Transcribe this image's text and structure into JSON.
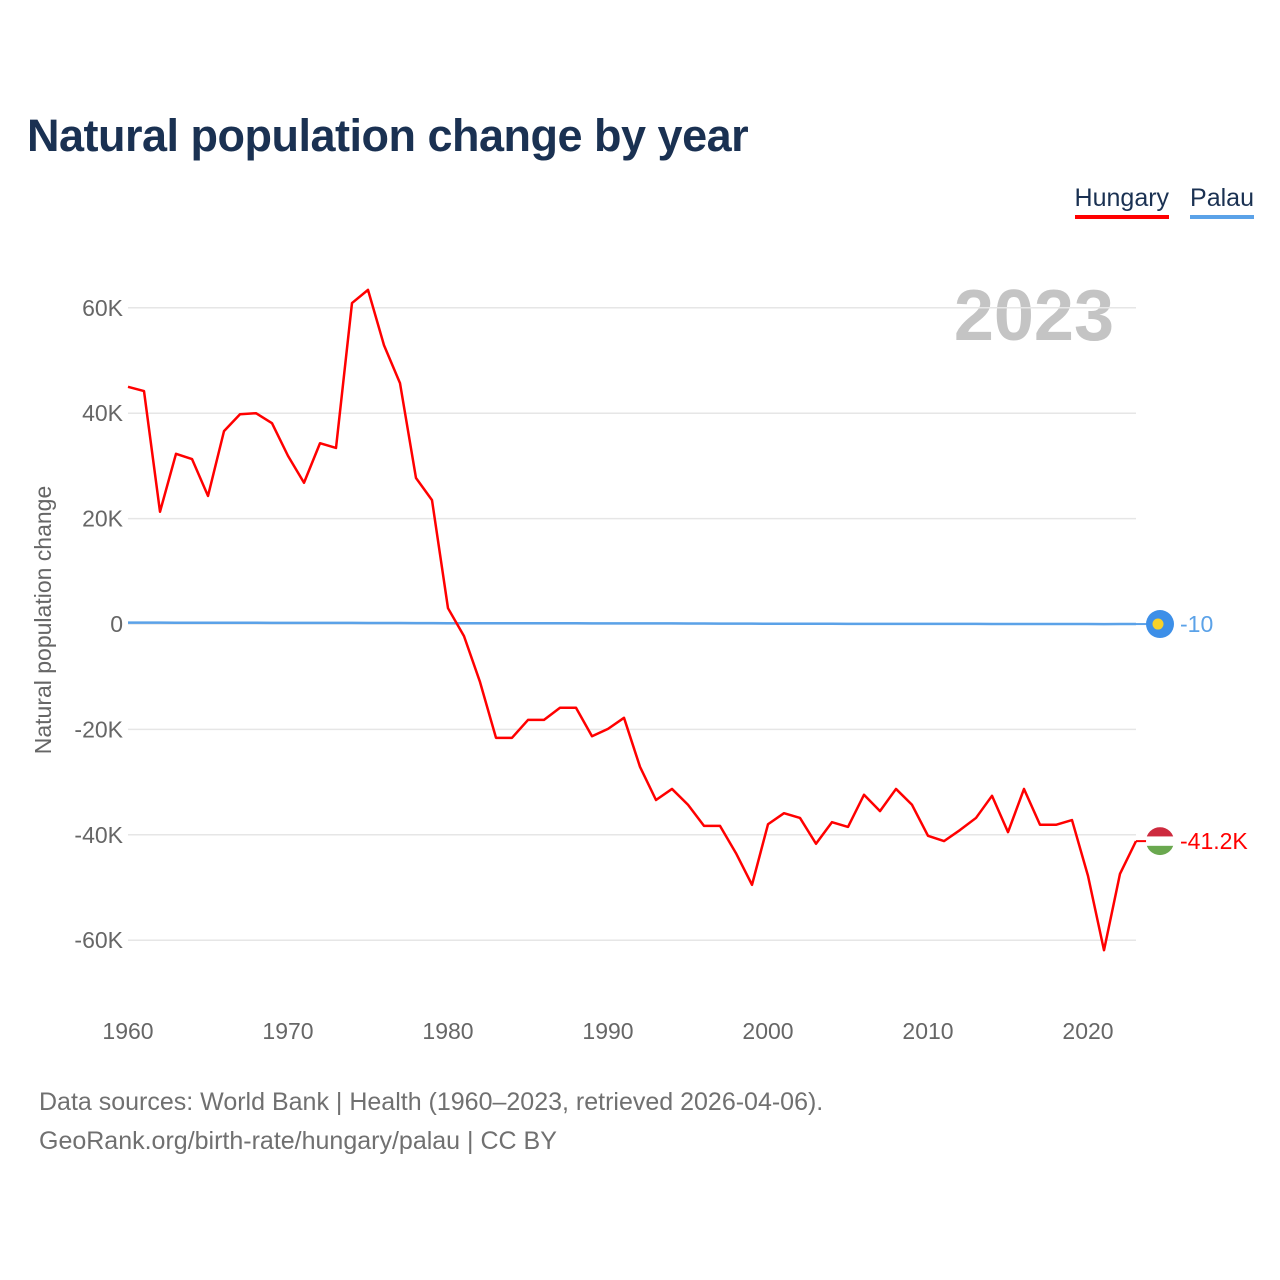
{
  "chart_data": {
    "type": "line",
    "title": "Natural population change by year",
    "xlabel": "",
    "ylabel": "Natural population change",
    "xlim": [
      1960,
      2023
    ],
    "ylim": [
      -70000,
      70000
    ],
    "x_ticks": [
      1960,
      1970,
      1980,
      1990,
      2000,
      2010,
      2020
    ],
    "x_tick_labels": [
      "1960",
      "1970",
      "1980",
      "1990",
      "2000",
      "2010",
      "2020"
    ],
    "y_ticks": [
      60000,
      40000,
      20000,
      0,
      -20000,
      -40000,
      -60000
    ],
    "y_tick_labels": [
      "60K",
      "40K",
      "20K",
      "0",
      "-20K",
      "-40K",
      "-60K"
    ],
    "grid": true,
    "legend_position": "top-right",
    "year_label": "2023",
    "x": [
      1960,
      1961,
      1962,
      1963,
      1964,
      1965,
      1966,
      1967,
      1968,
      1969,
      1970,
      1971,
      1972,
      1973,
      1974,
      1975,
      1976,
      1977,
      1978,
      1979,
      1980,
      1981,
      1982,
      1983,
      1984,
      1985,
      1986,
      1987,
      1988,
      1989,
      1990,
      1991,
      1992,
      1993,
      1994,
      1995,
      1996,
      1997,
      1998,
      1999,
      2000,
      2001,
      2002,
      2003,
      2004,
      2005,
      2006,
      2007,
      2008,
      2009,
      2010,
      2011,
      2012,
      2013,
      2014,
      2015,
      2016,
      2017,
      2018,
      2019,
      2020,
      2021,
      2022,
      2023
    ],
    "series": [
      {
        "name": "Hungary",
        "color": "#ff0000",
        "end_label": "-41.2K",
        "flag": "hungary-flag",
        "values": [
          45000,
          44200,
          21300,
          32300,
          31300,
          24300,
          36600,
          39800,
          40000,
          38100,
          31900,
          26800,
          34300,
          33400,
          60900,
          63400,
          52900,
          45700,
          27700,
          23500,
          3000,
          -2300,
          -11000,
          -21600,
          -21600,
          -18200,
          -18200,
          -15900,
          -15900,
          -21300,
          -19900,
          -17800,
          -27100,
          -33400,
          -31300,
          -34300,
          -38300,
          -38300,
          -43500,
          -49500,
          -38000,
          -35900,
          -36800,
          -41700,
          -37600,
          -38500,
          -32400,
          -35500,
          -31300,
          -34300,
          -40200,
          -41200,
          -39100,
          -36800,
          -32600,
          -39500,
          -31300,
          -38100,
          -38100,
          -37200,
          -47800,
          -61900,
          -47400,
          -41200
        ]
      },
      {
        "name": "Palau",
        "color": "#5ba2e8",
        "end_label": "-10",
        "flag": "palau-flag",
        "values": [
          250,
          250,
          250,
          240,
          240,
          230,
          230,
          230,
          230,
          220,
          220,
          220,
          210,
          210,
          210,
          200,
          190,
          180,
          170,
          160,
          150,
          150,
          150,
          140,
          140,
          140,
          140,
          140,
          140,
          130,
          130,
          120,
          120,
          120,
          110,
          100,
          90,
          80,
          70,
          60,
          50,
          50,
          40,
          40,
          40,
          30,
          30,
          30,
          30,
          20,
          20,
          20,
          20,
          20,
          10,
          10,
          10,
          0,
          0,
          0,
          -10,
          -20,
          -10,
          -10
        ]
      }
    ]
  },
  "footer": {
    "line1": "Data sources: World Bank | Health (1960–2023, retrieved 2026-04-06).",
    "line2": "GeoRank.org/birth-rate/hungary/palau | CC BY"
  }
}
